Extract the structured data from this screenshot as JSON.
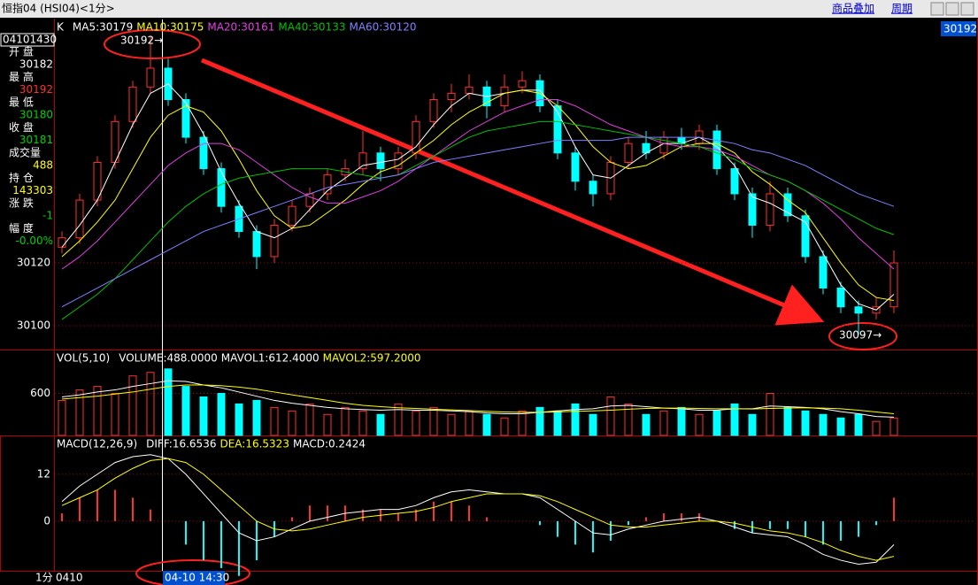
{
  "window": {
    "title": "恒指04 (HSI04)<1分>",
    "menu": [
      "商品叠加",
      "周期"
    ]
  },
  "info_panel": {
    "time": "04101430",
    "rows": [
      {
        "label": "开 盘",
        "value": "30182",
        "color": "#ffffff"
      },
      {
        "label": "最 高",
        "value": "30192",
        "color": "#ff3030"
      },
      {
        "label": "最 低",
        "value": "30180",
        "color": "#00d000"
      },
      {
        "label": "收 盘",
        "value": "30181",
        "color": "#00d000"
      },
      {
        "label": "成交量",
        "value": "488",
        "color": "#ffff00"
      },
      {
        "label": "持 仓",
        "value": "143303",
        "color": "#ffff00"
      },
      {
        "label": "涨 跌",
        "value": "-1",
        "color": "#00d000"
      },
      {
        "label": "幅 度",
        "value": "-0.00%",
        "color": "#00d000"
      }
    ]
  },
  "footer": {
    "period": "1分",
    "start": "0410",
    "cursor": "04-10 14:30"
  },
  "chart_data": [
    {
      "type": "candlestick",
      "legend_prefix": "K",
      "price_marker": "30192",
      "annotations": [
        "30192→",
        "30097→"
      ],
      "ylim": [
        30092.4,
        30197.5
      ],
      "yticks": [
        30100,
        30120
      ],
      "grid": true,
      "up_color": "#ff3030",
      "down_color": "#00ffff",
      "candles": [
        [
          30125,
          30130,
          30123,
          30128
        ],
        [
          30128,
          30142,
          30126,
          30140
        ],
        [
          30140,
          30154,
          30138,
          30152
        ],
        [
          30152,
          30167,
          30150,
          30165
        ],
        [
          30165,
          30178,
          30163,
          30176
        ],
        [
          30176,
          30192,
          30174,
          30182
        ],
        [
          30182,
          30185,
          30170,
          30172
        ],
        [
          30172,
          30174,
          30158,
          30160
        ],
        [
          30160,
          30162,
          30148,
          30150
        ],
        [
          30150,
          30152,
          30136,
          30138
        ],
        [
          30138,
          30140,
          30128,
          30130
        ],
        [
          30130,
          30132,
          30118,
          30122
        ],
        [
          30122,
          30134,
          30120,
          30132
        ],
        [
          30132,
          30140,
          30130,
          30138
        ],
        [
          30138,
          30144,
          30136,
          30142
        ],
        [
          30142,
          30150,
          30140,
          30148
        ],
        [
          30148,
          30153,
          30146,
          30150
        ],
        [
          30150,
          30162,
          30148,
          30155
        ],
        [
          30155,
          30157,
          30146,
          30150
        ],
        [
          30150,
          30157,
          30148,
          30155
        ],
        [
          30155,
          30167,
          30153,
          30165
        ],
        [
          30165,
          30174,
          30163,
          30172
        ],
        [
          30172,
          30177,
          30168,
          30174
        ],
        [
          30174,
          30180,
          30172,
          30176
        ],
        [
          30176,
          30178,
          30166,
          30170
        ],
        [
          30170,
          30180,
          30168,
          30176
        ],
        [
          30176,
          30181,
          30174,
          30178
        ],
        [
          30178,
          30180,
          30168,
          30170
        ],
        [
          30170,
          30172,
          30153,
          30155
        ],
        [
          30155,
          30157,
          30143,
          30146
        ],
        [
          30146,
          30148,
          30138,
          30142
        ],
        [
          30142,
          30154,
          30140,
          30152
        ],
        [
          30152,
          30160,
          30150,
          30158
        ],
        [
          30158,
          30162,
          30153,
          30155
        ],
        [
          30155,
          30162,
          30153,
          30160
        ],
        [
          30160,
          30163,
          30156,
          30158
        ],
        [
          30158,
          30164,
          30156,
          30162
        ],
        [
          30162,
          30164,
          30148,
          30150
        ],
        [
          30150,
          30152,
          30140,
          30142
        ],
        [
          30142,
          30144,
          30128,
          30132
        ],
        [
          30132,
          30146,
          30130,
          30142
        ],
        [
          30142,
          30144,
          30133,
          30135
        ],
        [
          30135,
          30137,
          30120,
          30122
        ],
        [
          30122,
          30124,
          30110,
          30112
        ],
        [
          30112,
          30114,
          30104,
          30106
        ],
        [
          30106,
          30108,
          30097,
          30104
        ],
        [
          30104,
          30109,
          30102,
          30106
        ],
        [
          30106,
          30124,
          30104,
          30120
        ]
      ],
      "series": [
        {
          "name": "MA5:30179",
          "color": "#ffffff",
          "values": [
            30125,
            30132,
            30140,
            30152,
            30164,
            30174,
            30177,
            30171,
            30161,
            30149,
            30139,
            30130,
            30128,
            30131,
            30137,
            30143,
            30147,
            30151,
            30152,
            30153,
            30157,
            30164,
            30170,
            30174,
            30173,
            30174,
            30175,
            30175,
            30168,
            30157,
            30148,
            30147,
            30151,
            30155,
            30158,
            30158,
            30160,
            30157,
            30151,
            30141,
            30139,
            30136,
            30133,
            30123,
            30113,
            30107,
            30105,
            30110
          ]
        },
        {
          "name": "MA10:30175",
          "color": "#ffff00",
          "values": [
            30122,
            30127,
            30133,
            30140,
            30150,
            30160,
            30167,
            30170,
            30168,
            30162,
            30153,
            30143,
            30135,
            30131,
            30132,
            30136,
            30140,
            30145,
            30149,
            30151,
            30155,
            30159,
            30164,
            30168,
            30171,
            30174,
            30175,
            30174,
            30170,
            30164,
            30157,
            30152,
            30150,
            30151,
            30154,
            30157,
            30158,
            30158,
            30155,
            30149,
            30145,
            30140,
            30136,
            30128,
            30120,
            30113,
            30109,
            30108
          ]
        },
        {
          "name": "MA20:30161",
          "color": "#e040e0",
          "values": [
            30118,
            30122,
            30127,
            30133,
            30139,
            30145,
            30151,
            30155,
            30158,
            30158,
            30156,
            30152,
            30148,
            30144,
            30141,
            30139,
            30139,
            30141,
            30143,
            30146,
            30150,
            30154,
            30158,
            30162,
            30165,
            30168,
            30170,
            30172,
            30172,
            30170,
            30167,
            30164,
            30162,
            30160,
            30158,
            30157,
            30157,
            30156,
            30154,
            30151,
            30148,
            30146,
            30143,
            30139,
            30134,
            30128,
            30123,
            30118
          ]
        },
        {
          "name": "MA40:30133",
          "color": "#00c000",
          "values": [
            30102,
            30106,
            30110,
            30115,
            30121,
            30127,
            30133,
            30138,
            30142,
            30145,
            30147,
            30148,
            30149,
            30150,
            30150,
            30150,
            30149,
            30148,
            30147,
            30148,
            30151,
            30154,
            30157,
            30160,
            30162,
            30163,
            30164,
            30165,
            30165,
            30164,
            30163,
            30162,
            30161,
            30160,
            30159,
            30158,
            30157,
            30155,
            30153,
            30150,
            30148,
            30146,
            30143,
            30140,
            30137,
            30134,
            30131,
            30129
          ]
        },
        {
          "name": "MA60:30120",
          "color": "#8080ff",
          "values": [
            30106,
            30109,
            30112,
            30115,
            30118,
            30121,
            30124,
            30127,
            30130,
            30132,
            30134,
            30136,
            30138,
            30140,
            30142,
            30144,
            30145,
            30146,
            30147,
            30148,
            30150,
            30152,
            30153,
            30154,
            30155,
            30156,
            30157,
            30158,
            30159,
            30159,
            30159,
            30159,
            30160,
            30160,
            30160,
            30160,
            30160,
            30159,
            30158,
            30156,
            30155,
            30153,
            30151,
            30148,
            30145,
            30142,
            30140,
            30138
          ]
        }
      ]
    },
    {
      "type": "volume",
      "legend_prefix": "VOL(5,10)",
      "ylim": [
        0,
        1213
      ],
      "yticks": [
        600
      ],
      "grid": true,
      "series": [
        {
          "name": "VOLUME:488.0000",
          "color": "#ffffff",
          "values": [
            500,
            650,
            700,
            600,
            850,
            900,
            950,
            700,
            550,
            600,
            450,
            500,
            400,
            350,
            450,
            300,
            400,
            350,
            300,
            450,
            350,
            400,
            300,
            350,
            300,
            250,
            350,
            400,
            350,
            450,
            300,
            550,
            450,
            300,
            350,
            400,
            300,
            350,
            450,
            300,
            600,
            400,
            350,
            300,
            250,
            300,
            200,
            250
          ]
        },
        {
          "name": "MAVOL1:612.4000",
          "color": "#ffffff",
          "values": [
            550,
            580,
            620,
            650,
            700,
            740,
            780,
            770,
            720,
            680,
            620,
            560,
            500,
            460,
            430,
            400,
            380,
            370,
            360,
            370,
            360,
            360,
            350,
            340,
            320,
            310,
            310,
            330,
            350,
            370,
            380,
            420,
            430,
            410,
            390,
            380,
            360,
            360,
            380,
            380,
            420,
            410,
            400,
            380,
            340,
            310,
            270,
            260
          ]
        },
        {
          "name": "MAVOL2:597.2000",
          "color": "#ffff00",
          "values": [
            520,
            540,
            560,
            590,
            620,
            660,
            700,
            720,
            720,
            710,
            690,
            660,
            620,
            580,
            540,
            500,
            460,
            430,
            410,
            395,
            385,
            375,
            365,
            355,
            345,
            335,
            330,
            330,
            335,
            345,
            350,
            360,
            375,
            385,
            390,
            390,
            385,
            380,
            380,
            378,
            385,
            390,
            395,
            390,
            380,
            360,
            335,
            310
          ]
        }
      ]
    },
    {
      "type": "macd",
      "legend_prefix": "MACD(12,26,9)",
      "ylim": [
        -12.7,
        21.7
      ],
      "yticks": [
        12,
        0
      ],
      "grid": true,
      "series": [
        {
          "name": "DIFF:16.6536",
          "color": "#ffffff",
          "values": [
            5,
            9,
            12,
            15,
            16.5,
            17,
            16,
            12,
            7,
            2,
            -3,
            -5,
            -4,
            -2,
            0,
            1,
            2,
            2.5,
            3,
            3,
            4,
            6,
            7.5,
            8,
            7.5,
            7,
            7,
            6,
            3,
            0,
            -3,
            -3.5,
            -2,
            -1,
            0,
            0.5,
            1,
            0,
            -1.5,
            -3,
            -3.5,
            -4,
            -6,
            -8.5,
            -10,
            -11,
            -10.5,
            -6
          ]
        },
        {
          "name": "DEA:16.5323",
          "color": "#ffff00",
          "values": [
            4,
            6,
            8,
            11,
            13.5,
            15.5,
            16,
            15,
            12,
            8,
            4,
            0,
            -2,
            -2.5,
            -2,
            -1,
            0,
            1,
            1.5,
            2,
            2.5,
            3.5,
            5,
            6,
            7,
            7,
            7,
            6.5,
            5,
            3,
            1,
            -1,
            -1.5,
            -1.5,
            -1,
            -0.5,
            0,
            0,
            -0.5,
            -1.5,
            -2.5,
            -3,
            -4,
            -5.5,
            -7.5,
            -9,
            -10,
            -9
          ]
        },
        {
          "name": "MACD:0.2424",
          "color": "#ffffff",
          "values": [
            2,
            6,
            8,
            8,
            6,
            3,
            0,
            -6,
            -10,
            -12,
            -14,
            -10,
            -4,
            1,
            4,
            4,
            4,
            3,
            3,
            2,
            3,
            5,
            5,
            4,
            1,
            0,
            0,
            -1,
            -4,
            -6,
            -8,
            -5,
            -1,
            1,
            2,
            2,
            2,
            0,
            -2,
            -3,
            -2,
            -2,
            -4,
            -6,
            -5,
            -4,
            -1,
            6
          ]
        }
      ]
    }
  ]
}
